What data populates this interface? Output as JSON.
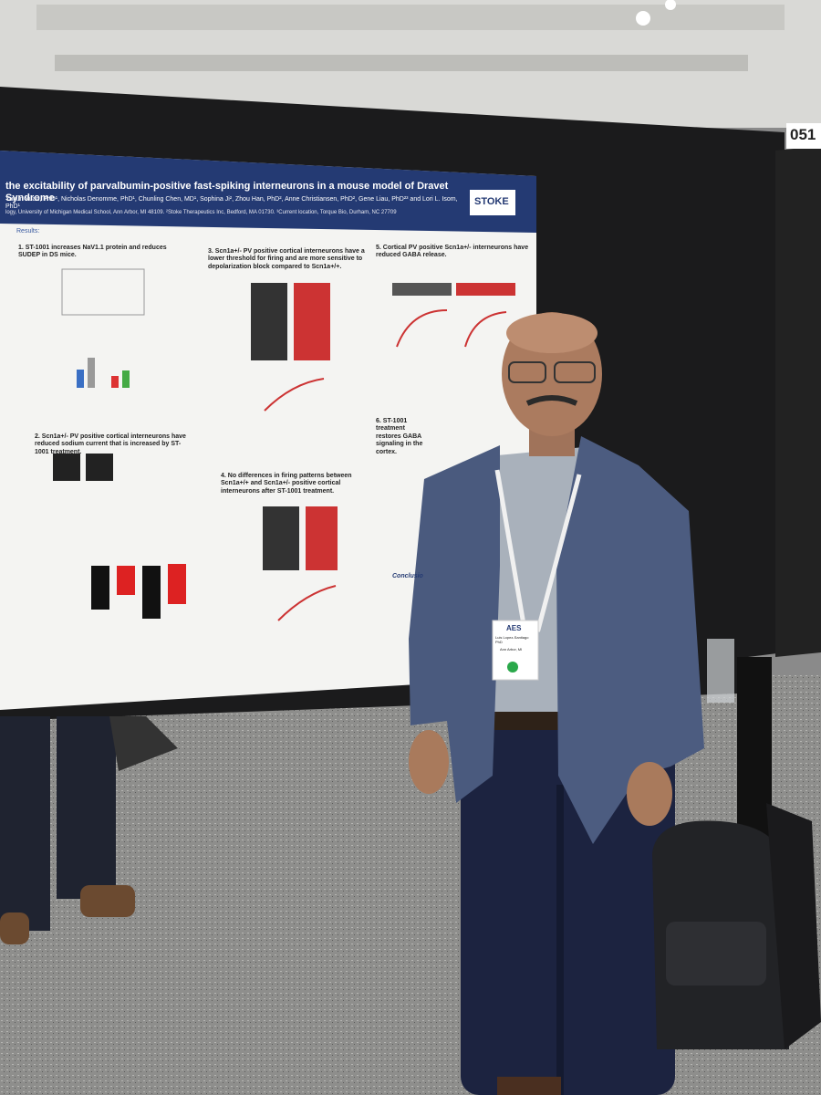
{
  "booth_number": "051",
  "poster": {
    "title": "the excitability of parvalbumin-positive fast-spiking interneurons in a mouse model of Dravet Syndrome",
    "authors": "Yukun Yuan, PhD¹, Nicholas Denomme, PhD¹, Chunling Chen, MD¹, Sophina Ji², Zhou Han, PhD², Anne Christiansen, PhD², Gene Liau, PhD²³ and Lori L. Isom, PhD¹",
    "affiliation": "logy, University of Michigan Medical School, Ann Arbor, MI 48109. ²Stoke Therapeutics Inc, Bedford, MA 01730. ³Current location, Torque Bio, Durham, NC 27709",
    "logo": "STOKE",
    "results_label": "Results:",
    "sections": [
      "1. ST-1001 increases NaV1.1 protein and reduces SUDEP in DS mice.",
      "2. Scn1a+/- PV positive cortical interneurons have reduced sodium current that is increased by ST-1001 treatment.",
      "3. Scn1a+/- PV positive cortical interneurons have a lower threshold for firing and are more sensitive to depolarization block compared to Scn1a+/+.",
      "4. No differences in firing patterns between Scn1a+/+ and Scn1a+/- positive cortical interneurons after ST-1001 treatment.",
      "5. Cortical PV positive Scn1a+/- interneurons have reduced GABA release.",
      "6. ST-1001 treatment restores GABA signaling in the cortex."
    ],
    "conclusion_label": "Conclusio"
  },
  "badge": {
    "org": "AES",
    "name": "Luis Lopez-Santiago PhD",
    "location": "Ann Arbor, MI"
  }
}
